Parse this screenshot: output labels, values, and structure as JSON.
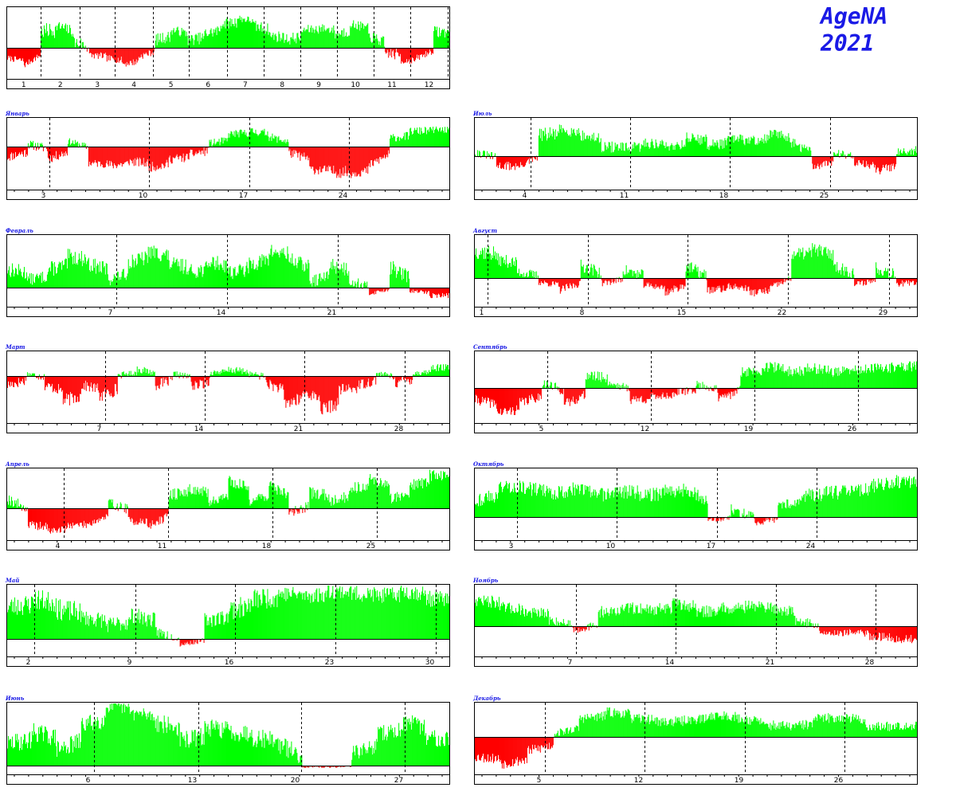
{
  "header": {
    "title": "AgeNA",
    "year": "2021"
  },
  "colors": {
    "positive": "#00ff00",
    "negative": "#ff0000",
    "frame": "#000000",
    "title": "#1a1ae6"
  },
  "chart_data": [
    {
      "id": "year",
      "type": "bar",
      "title": "",
      "xticks": [
        "1",
        "2",
        "3",
        "4",
        "5",
        "6",
        "7",
        "8",
        "9",
        "10",
        "11",
        "12"
      ],
      "shape": [
        [
          -0.35,
          0.1
        ],
        [
          -0.6,
          0.1
        ],
        [
          0.4,
          0.2
        ],
        [
          0.55,
          0.15
        ],
        [
          0.15,
          0.2
        ],
        [
          -0.25,
          0.12
        ],
        [
          -0.35,
          0.12
        ],
        [
          -0.55,
          0.12
        ],
        [
          -0.3,
          0.12
        ],
        [
          0.2,
          0.15
        ],
        [
          0.45,
          0.12
        ],
        [
          0.2,
          0.15
        ],
        [
          0.35,
          0.15
        ],
        [
          0.6,
          0.15
        ],
        [
          0.75,
          0.1
        ],
        [
          0.55,
          0.15
        ],
        [
          0.3,
          0.15
        ],
        [
          0.2,
          0.15
        ],
        [
          0.45,
          0.12
        ],
        [
          0.5,
          0.12
        ],
        [
          0.35,
          0.15
        ],
        [
          0.6,
          0.12
        ],
        [
          0.3,
          0.15
        ],
        [
          -0.15,
          0.2
        ],
        [
          -0.45,
          0.12
        ],
        [
          -0.35,
          0.12
        ],
        [
          0.4,
          0.15
        ]
      ],
      "seed": 7
    },
    {
      "id": "jan",
      "type": "bar",
      "title": "Январь",
      "xticks": [
        "3",
        "10",
        "17",
        "24"
      ],
      "shape": [
        [
          -0.25,
          0.12
        ],
        [
          0.1,
          0.15
        ],
        [
          -0.3,
          0.12
        ],
        [
          0.2,
          0.12
        ],
        [
          -0.4,
          0.1
        ],
        [
          -0.45,
          0.12
        ],
        [
          -0.35,
          0.12
        ],
        [
          -0.5,
          0.12
        ],
        [
          -0.3,
          0.12
        ],
        [
          -0.2,
          0.12
        ],
        [
          0.1,
          0.15
        ],
        [
          0.45,
          0.15
        ],
        [
          0.55,
          0.15
        ],
        [
          0.35,
          0.15
        ],
        [
          -0.15,
          0.12
        ],
        [
          -0.55,
          0.12
        ],
        [
          -0.6,
          0.15
        ],
        [
          -0.65,
          0.12
        ],
        [
          -0.45,
          0.12
        ],
        [
          0.3,
          0.15
        ],
        [
          0.55,
          0.15
        ],
        [
          0.6,
          0.12
        ]
      ],
      "seed": 11
    },
    {
      "id": "feb",
      "type": "bar",
      "title": "Февраль",
      "xticks": [
        "7",
        "14",
        "21"
      ],
      "shape": [
        [
          0.35,
          0.15
        ],
        [
          0.15,
          0.12
        ],
        [
          0.35,
          0.15
        ],
        [
          0.6,
          0.15
        ],
        [
          0.45,
          0.15
        ],
        [
          0.15,
          0.12
        ],
        [
          0.5,
          0.15
        ],
        [
          0.7,
          0.15
        ],
        [
          0.45,
          0.15
        ],
        [
          0.3,
          0.15
        ],
        [
          0.5,
          0.15
        ],
        [
          0.3,
          0.15
        ],
        [
          0.45,
          0.15
        ],
        [
          0.7,
          0.15
        ],
        [
          0.55,
          0.15
        ],
        [
          0.1,
          0.12
        ],
        [
          0.45,
          0.15
        ],
        [
          0.15,
          0.12
        ],
        [
          -0.35,
          0.12
        ],
        [
          0.4,
          0.15
        ],
        [
          -0.2,
          0.12
        ],
        [
          -0.45,
          0.15
        ]
      ],
      "seed": 13
    },
    {
      "id": "mar",
      "type": "bar",
      "title": "Март",
      "xticks": [
        "7",
        "14",
        "21",
        "28"
      ],
      "shape": [
        [
          -0.2,
          0.12
        ],
        [
          0.1,
          0.12
        ],
        [
          -0.2,
          0.12
        ],
        [
          -0.55,
          0.15
        ],
        [
          -0.2,
          0.12
        ],
        [
          -0.45,
          0.15
        ],
        [
          0.05,
          0.12
        ],
        [
          0.3,
          0.15
        ],
        [
          -0.2,
          0.12
        ],
        [
          0.1,
          0.12
        ],
        [
          -0.25,
          0.12
        ],
        [
          0.15,
          0.12
        ],
        [
          0.25,
          0.15
        ],
        [
          0.1,
          0.12
        ],
        [
          -0.15,
          0.12
        ],
        [
          -0.6,
          0.15
        ],
        [
          -0.35,
          0.12
        ],
        [
          -0.75,
          0.15
        ],
        [
          -0.3,
          0.12
        ],
        [
          -0.2,
          0.12
        ],
        [
          0.1,
          0.12
        ],
        [
          -0.15,
          0.12
        ],
        [
          0.1,
          0.12
        ],
        [
          0.35,
          0.15
        ]
      ],
      "seed": 17
    },
    {
      "id": "apr",
      "type": "bar",
      "title": "Апрель",
      "xticks": [
        "4",
        "11",
        "18",
        "25"
      ],
      "shape": [
        [
          0.25,
          0.15
        ],
        [
          -0.55,
          0.15
        ],
        [
          -0.75,
          0.12
        ],
        [
          -0.55,
          0.12
        ],
        [
          -0.5,
          0.15
        ],
        [
          0.15,
          0.15
        ],
        [
          -0.4,
          0.15
        ],
        [
          -0.6,
          0.15
        ],
        [
          0.35,
          0.15
        ],
        [
          0.5,
          0.15
        ],
        [
          0.15,
          0.12
        ],
        [
          0.7,
          0.15
        ],
        [
          0.2,
          0.15
        ],
        [
          0.6,
          0.15
        ],
        [
          -0.15,
          0.15
        ],
        [
          0.4,
          0.15
        ],
        [
          0.2,
          0.15
        ],
        [
          0.5,
          0.15
        ],
        [
          0.75,
          0.15
        ],
        [
          0.25,
          0.15
        ],
        [
          0.6,
          0.15
        ],
        [
          0.85,
          0.15
        ]
      ],
      "seed": 19
    },
    {
      "id": "may",
      "type": "bar",
      "title": "Май",
      "xticks": [
        "2",
        "9",
        "16",
        "23",
        "30"
      ],
      "shape": [
        [
          0.6,
          0.2
        ],
        [
          0.75,
          0.2
        ],
        [
          0.55,
          0.2
        ],
        [
          0.4,
          0.15
        ],
        [
          0.25,
          0.15
        ],
        [
          0.45,
          0.15
        ],
        [
          0.15,
          0.12
        ],
        [
          -0.35,
          0.15
        ],
        [
          0.35,
          0.15
        ],
        [
          0.55,
          0.2
        ],
        [
          0.75,
          0.2
        ],
        [
          0.85,
          0.15
        ],
        [
          0.8,
          0.15
        ],
        [
          0.9,
          0.15
        ],
        [
          0.85,
          0.15
        ],
        [
          0.8,
          0.15
        ],
        [
          0.9,
          0.15
        ],
        [
          0.75,
          0.15
        ]
      ],
      "seed": 23
    },
    {
      "id": "jun",
      "type": "bar",
      "title": "Июнь",
      "xticks": [
        "6",
        "13",
        "20",
        "27"
      ],
      "shape": [
        [
          0.35,
          0.15
        ],
        [
          0.55,
          0.15
        ],
        [
          0.25,
          0.15
        ],
        [
          0.65,
          0.15
        ],
        [
          0.95,
          0.1
        ],
        [
          0.85,
          0.12
        ],
        [
          0.7,
          0.15
        ],
        [
          0.4,
          0.15
        ],
        [
          0.6,
          0.15
        ],
        [
          0.55,
          0.15
        ],
        [
          0.45,
          0.15
        ],
        [
          0.35,
          0.15
        ],
        [
          -0.2,
          0.12
        ],
        [
          -0.25,
          0.12
        ],
        [
          0.2,
          0.12
        ],
        [
          0.5,
          0.15
        ],
        [
          0.7,
          0.15
        ],
        [
          0.45,
          0.15
        ]
      ],
      "seed": 29
    },
    {
      "id": "jul",
      "type": "bar",
      "title": "Июль",
      "xticks": [
        "4",
        "11",
        "18",
        "25"
      ],
      "shape": [
        [
          0.1,
          0.12
        ],
        [
          -0.3,
          0.15
        ],
        [
          -0.35,
          0.12
        ],
        [
          0.55,
          0.2
        ],
        [
          0.7,
          0.15
        ],
        [
          0.55,
          0.15
        ],
        [
          0.25,
          0.15
        ],
        [
          0.2,
          0.15
        ],
        [
          0.35,
          0.15
        ],
        [
          0.25,
          0.15
        ],
        [
          0.5,
          0.15
        ],
        [
          0.3,
          0.15
        ],
        [
          0.45,
          0.15
        ],
        [
          0.4,
          0.15
        ],
        [
          0.6,
          0.15
        ],
        [
          0.35,
          0.15
        ],
        [
          -0.35,
          0.12
        ],
        [
          0.1,
          0.12
        ],
        [
          -0.2,
          0.12
        ],
        [
          -0.5,
          0.15
        ],
        [
          0.15,
          0.12
        ]
      ],
      "seed": 31
    },
    {
      "id": "aug",
      "type": "bar",
      "title": "Август",
      "xticks": [
        "1",
        "8",
        "15",
        "22",
        "29"
      ],
      "shape": [
        [
          0.65,
          0.2
        ],
        [
          0.45,
          0.15
        ],
        [
          0.15,
          0.12
        ],
        [
          -0.15,
          0.12
        ],
        [
          -0.45,
          0.15
        ],
        [
          0.3,
          0.15
        ],
        [
          -0.2,
          0.12
        ],
        [
          0.2,
          0.15
        ],
        [
          -0.25,
          0.12
        ],
        [
          -0.55,
          0.15
        ],
        [
          0.3,
          0.15
        ],
        [
          -0.45,
          0.15
        ],
        [
          -0.3,
          0.12
        ],
        [
          -0.55,
          0.15
        ],
        [
          -0.35,
          0.12
        ],
        [
          0.55,
          0.15
        ],
        [
          0.7,
          0.15
        ],
        [
          0.3,
          0.15
        ],
        [
          -0.25,
          0.12
        ],
        [
          0.25,
          0.15
        ],
        [
          -0.2,
          0.12
        ]
      ],
      "seed": 37
    },
    {
      "id": "sep",
      "type": "bar",
      "title": "Сентябрь",
      "xticks": [
        "5",
        "12",
        "19",
        "26"
      ],
      "shape": [
        [
          -0.35,
          0.15
        ],
        [
          -0.75,
          0.15
        ],
        [
          -0.45,
          0.15
        ],
        [
          0.15,
          0.15
        ],
        [
          -0.5,
          0.15
        ],
        [
          0.35,
          0.15
        ],
        [
          0.15,
          0.12
        ],
        [
          -0.35,
          0.15
        ],
        [
          -0.25,
          0.12
        ],
        [
          -0.15,
          0.12
        ],
        [
          0.1,
          0.12
        ],
        [
          -0.35,
          0.15
        ],
        [
          0.45,
          0.15
        ],
        [
          0.6,
          0.15
        ],
        [
          0.45,
          0.15
        ],
        [
          0.55,
          0.15
        ],
        [
          0.45,
          0.15
        ],
        [
          0.5,
          0.15
        ],
        [
          0.55,
          0.15
        ],
        [
          0.6,
          0.15
        ]
      ],
      "seed": 41
    },
    {
      "id": "oct",
      "type": "bar",
      "title": "Октябрь",
      "xticks": [
        "3",
        "10",
        "17",
        "24"
      ],
      "shape": [
        [
          0.35,
          0.15
        ],
        [
          0.65,
          0.15
        ],
        [
          0.6,
          0.15
        ],
        [
          0.5,
          0.15
        ],
        [
          0.6,
          0.15
        ],
        [
          0.45,
          0.15
        ],
        [
          0.55,
          0.15
        ],
        [
          0.45,
          0.15
        ],
        [
          0.55,
          0.15
        ],
        [
          0.6,
          0.15
        ],
        [
          -0.15,
          0.12
        ],
        [
          0.15,
          0.12
        ],
        [
          -0.3,
          0.15
        ],
        [
          0.25,
          0.12
        ],
        [
          0.45,
          0.15
        ],
        [
          0.5,
          0.15
        ],
        [
          0.55,
          0.15
        ],
        [
          0.65,
          0.15
        ],
        [
          0.75,
          0.15
        ]
      ],
      "seed": 43
    },
    {
      "id": "nov",
      "type": "bar",
      "title": "Ноябрь",
      "xticks": [
        "7",
        "14",
        "21",
        "28"
      ],
      "shape": [
        [
          0.65,
          0.15
        ],
        [
          0.45,
          0.15
        ],
        [
          0.35,
          0.15
        ],
        [
          0.15,
          0.12
        ],
        [
          -0.15,
          0.12
        ],
        [
          0.35,
          0.15
        ],
        [
          0.45,
          0.15
        ],
        [
          0.4,
          0.15
        ],
        [
          0.55,
          0.15
        ],
        [
          0.35,
          0.15
        ],
        [
          0.45,
          0.15
        ],
        [
          0.5,
          0.15
        ],
        [
          0.45,
          0.15
        ],
        [
          0.15,
          0.12
        ],
        [
          -0.25,
          0.12
        ],
        [
          -0.2,
          0.12
        ],
        [
          -0.35,
          0.15
        ],
        [
          -0.45,
          0.15
        ]
      ],
      "seed": 47
    },
    {
      "id": "dec",
      "type": "bar",
      "title": "Декабрь",
      "xticks": [
        "5",
        "12",
        "19",
        "26"
      ],
      "shape": [
        [
          -0.55,
          0.15
        ],
        [
          -0.75,
          0.15
        ],
        [
          -0.4,
          0.15
        ],
        [
          0.1,
          0.12
        ],
        [
          0.55,
          0.15
        ],
        [
          0.75,
          0.15
        ],
        [
          0.55,
          0.15
        ],
        [
          0.45,
          0.15
        ],
        [
          0.5,
          0.15
        ],
        [
          0.65,
          0.15
        ],
        [
          0.55,
          0.15
        ],
        [
          0.35,
          0.15
        ],
        [
          0.3,
          0.15
        ],
        [
          0.55,
          0.15
        ],
        [
          0.6,
          0.15
        ],
        [
          0.3,
          0.15
        ],
        [
          0.35,
          0.15
        ]
      ],
      "seed": 53
    }
  ]
}
